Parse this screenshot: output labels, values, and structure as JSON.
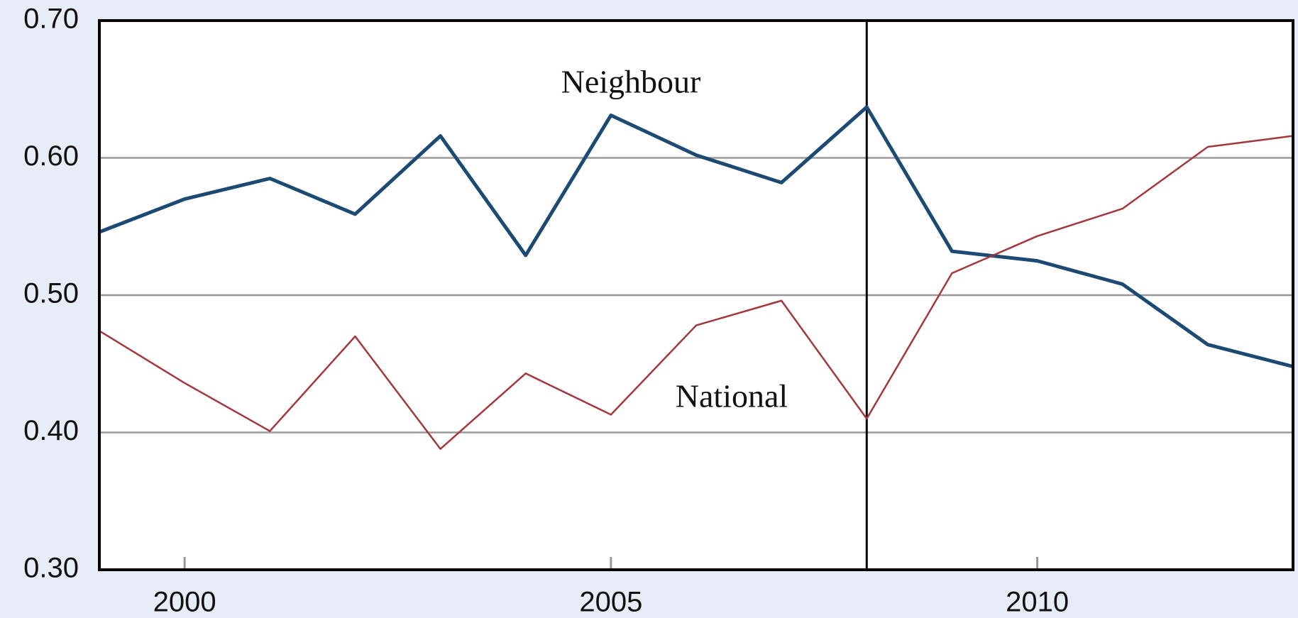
{
  "chart_data": {
    "type": "line",
    "x": [
      1999,
      2000,
      2001,
      2002,
      2003,
      2004,
      2005,
      2006,
      2007,
      2008,
      2009,
      2010,
      2011,
      2012,
      2013
    ],
    "series": [
      {
        "name": "Neighbour",
        "color": "#1d4a72",
        "values": [
          0.546,
          0.57,
          0.585,
          0.559,
          0.616,
          0.529,
          0.631,
          0.602,
          0.582,
          0.637,
          0.532,
          0.525,
          0.508,
          0.464,
          0.448
        ]
      },
      {
        "name": "National",
        "color": "#a3383c",
        "values": [
          0.474,
          0.436,
          0.401,
          0.47,
          0.388,
          0.443,
          0.413,
          0.478,
          0.496,
          0.41,
          0.516,
          0.543,
          0.563,
          0.608,
          0.616
        ]
      }
    ],
    "vline": 2008,
    "xlim": [
      1999,
      2013
    ],
    "xticks": [
      2000,
      2005,
      2010
    ],
    "ylim": [
      0.3,
      0.7
    ],
    "yticks": [
      {
        "value": 0.3,
        "label": "0.30"
      },
      {
        "value": 0.4,
        "label": "0.40"
      },
      {
        "value": 0.5,
        "label": "0.50"
      },
      {
        "value": 0.6,
        "label": "0.60"
      },
      {
        "value": 0.7,
        "label": "0.70"
      }
    ],
    "grid": true
  }
}
